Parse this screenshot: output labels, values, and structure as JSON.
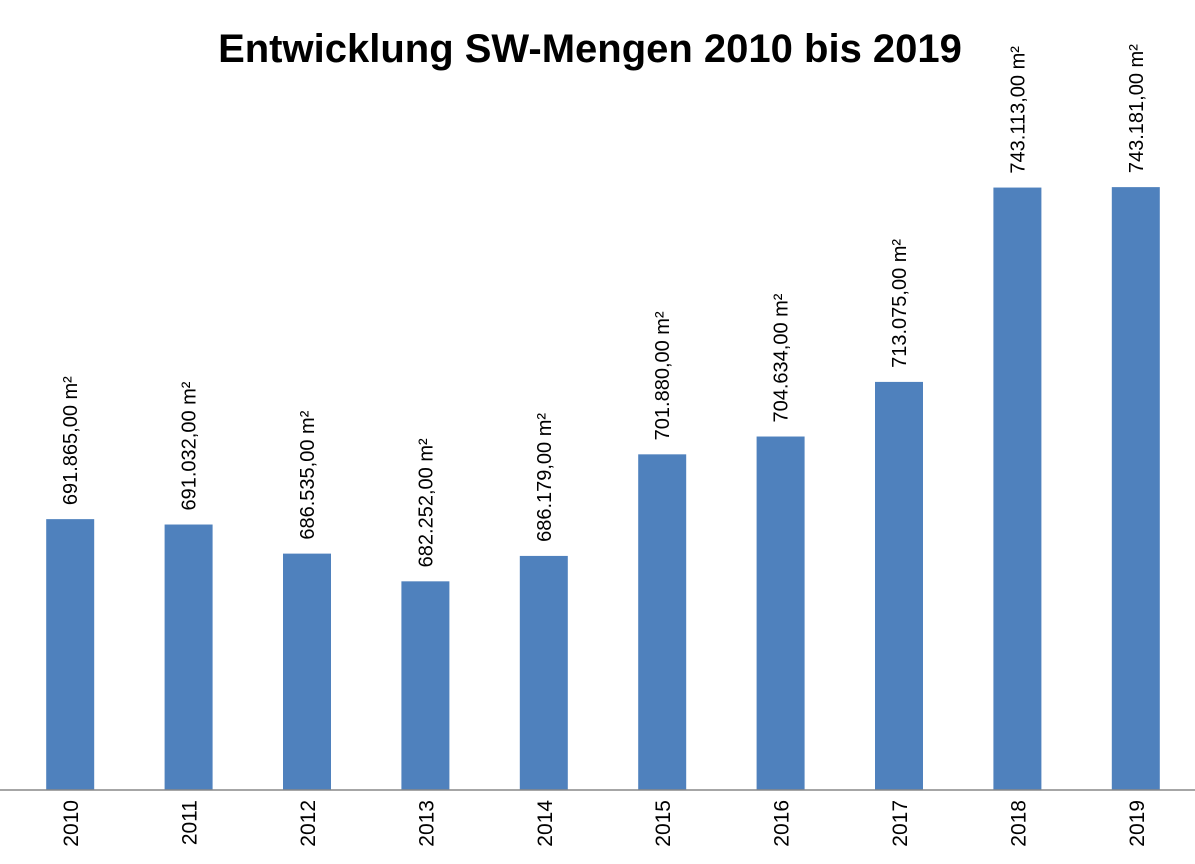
{
  "chart_data": {
    "type": "bar",
    "title": "Entwicklung SW-Mengen 2010 bis 2019",
    "categories": [
      "2010",
      "2011",
      "2012",
      "2013",
      "2014",
      "2015",
      "2016",
      "2017",
      "2018",
      "2019"
    ],
    "values": [
      691865,
      691032,
      686535,
      682252,
      686179,
      701880,
      704634,
      713075,
      743113,
      743181
    ],
    "value_labels": [
      "691.865,00 m²",
      "691.032,00 m²",
      "686.535,00 m²",
      "682.252,00 m²",
      "686.179,00 m²",
      "701.880,00 m²",
      "704.634,00 m²",
      "713.075,00 m²",
      "743.113,00 m²",
      "743.181,00 m²"
    ],
    "color": "#4f81bd",
    "ylim": [
      650000,
      750000
    ]
  }
}
